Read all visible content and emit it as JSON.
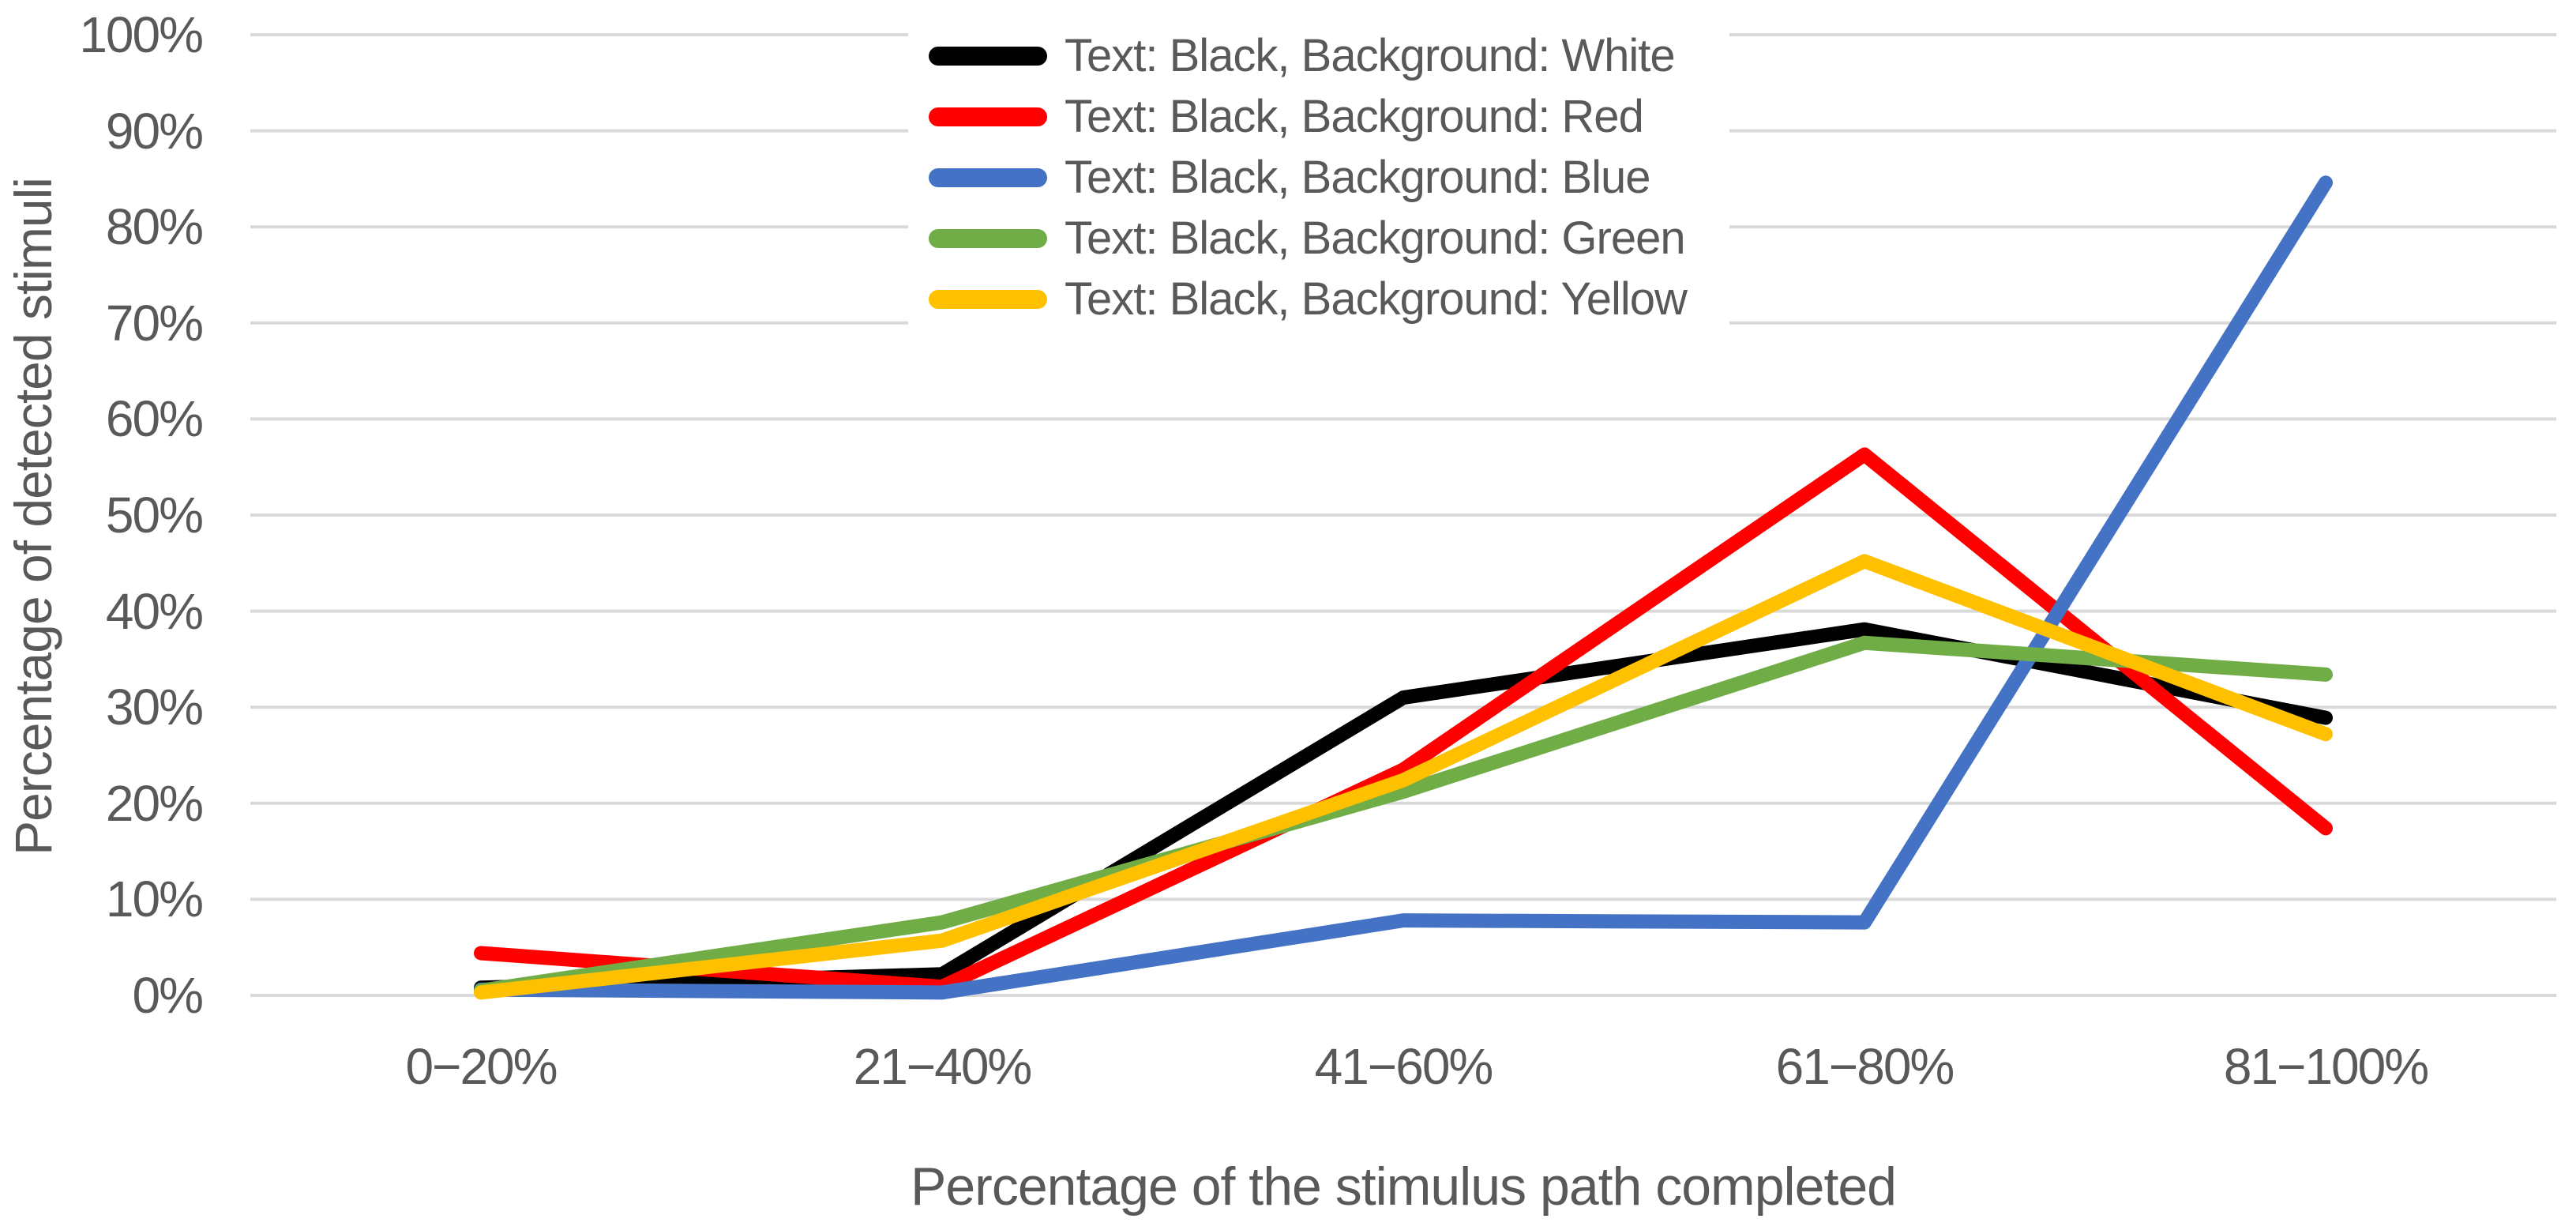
{
  "chart_data": {
    "type": "line",
    "title": "",
    "xlabel": "Percentage of the stimulus path completed",
    "ylabel": "Percentage of detected stimuli",
    "categories": [
      "0−20%",
      "21−40%",
      "41−60%",
      "61−80%",
      "81−100%"
    ],
    "y_ticks": [
      "100%",
      "90%",
      "80%",
      "70%",
      "60%",
      "50%",
      "40%",
      "30%",
      "20%",
      "10%",
      "0%"
    ],
    "ylim": [
      0,
      100
    ],
    "grid": "horizontal-only",
    "legend_position": "top-center-vertical-list",
    "series": [
      {
        "name": "Text: Black, Background: White",
        "color": "#000000",
        "values": [
          0.8,
          2.2,
          31.0,
          38.1,
          28.9
        ]
      },
      {
        "name": "Text: Black, Background: Red",
        "color": "#FF0000",
        "values": [
          4.4,
          0.9,
          23.5,
          56.3,
          17.4
        ]
      },
      {
        "name": "Text: Black, Background: Blue",
        "color": "#4472C4",
        "values": [
          0.6,
          0.3,
          7.8,
          7.6,
          84.6
        ]
      },
      {
        "name": "Text: Black, Background: Green",
        "color": "#70AD47",
        "values": [
          0.5,
          7.6,
          21.2,
          36.7,
          33.4
        ]
      },
      {
        "name": "Text: Black, Background: Yellow",
        "color": "#FFC000",
        "values": [
          0.3,
          5.7,
          22.4,
          45.2,
          27.2
        ]
      }
    ]
  },
  "colors": {
    "gridline": "#D9D9D9",
    "axis_text": "#595959",
    "background": "#FFFFFF"
  }
}
